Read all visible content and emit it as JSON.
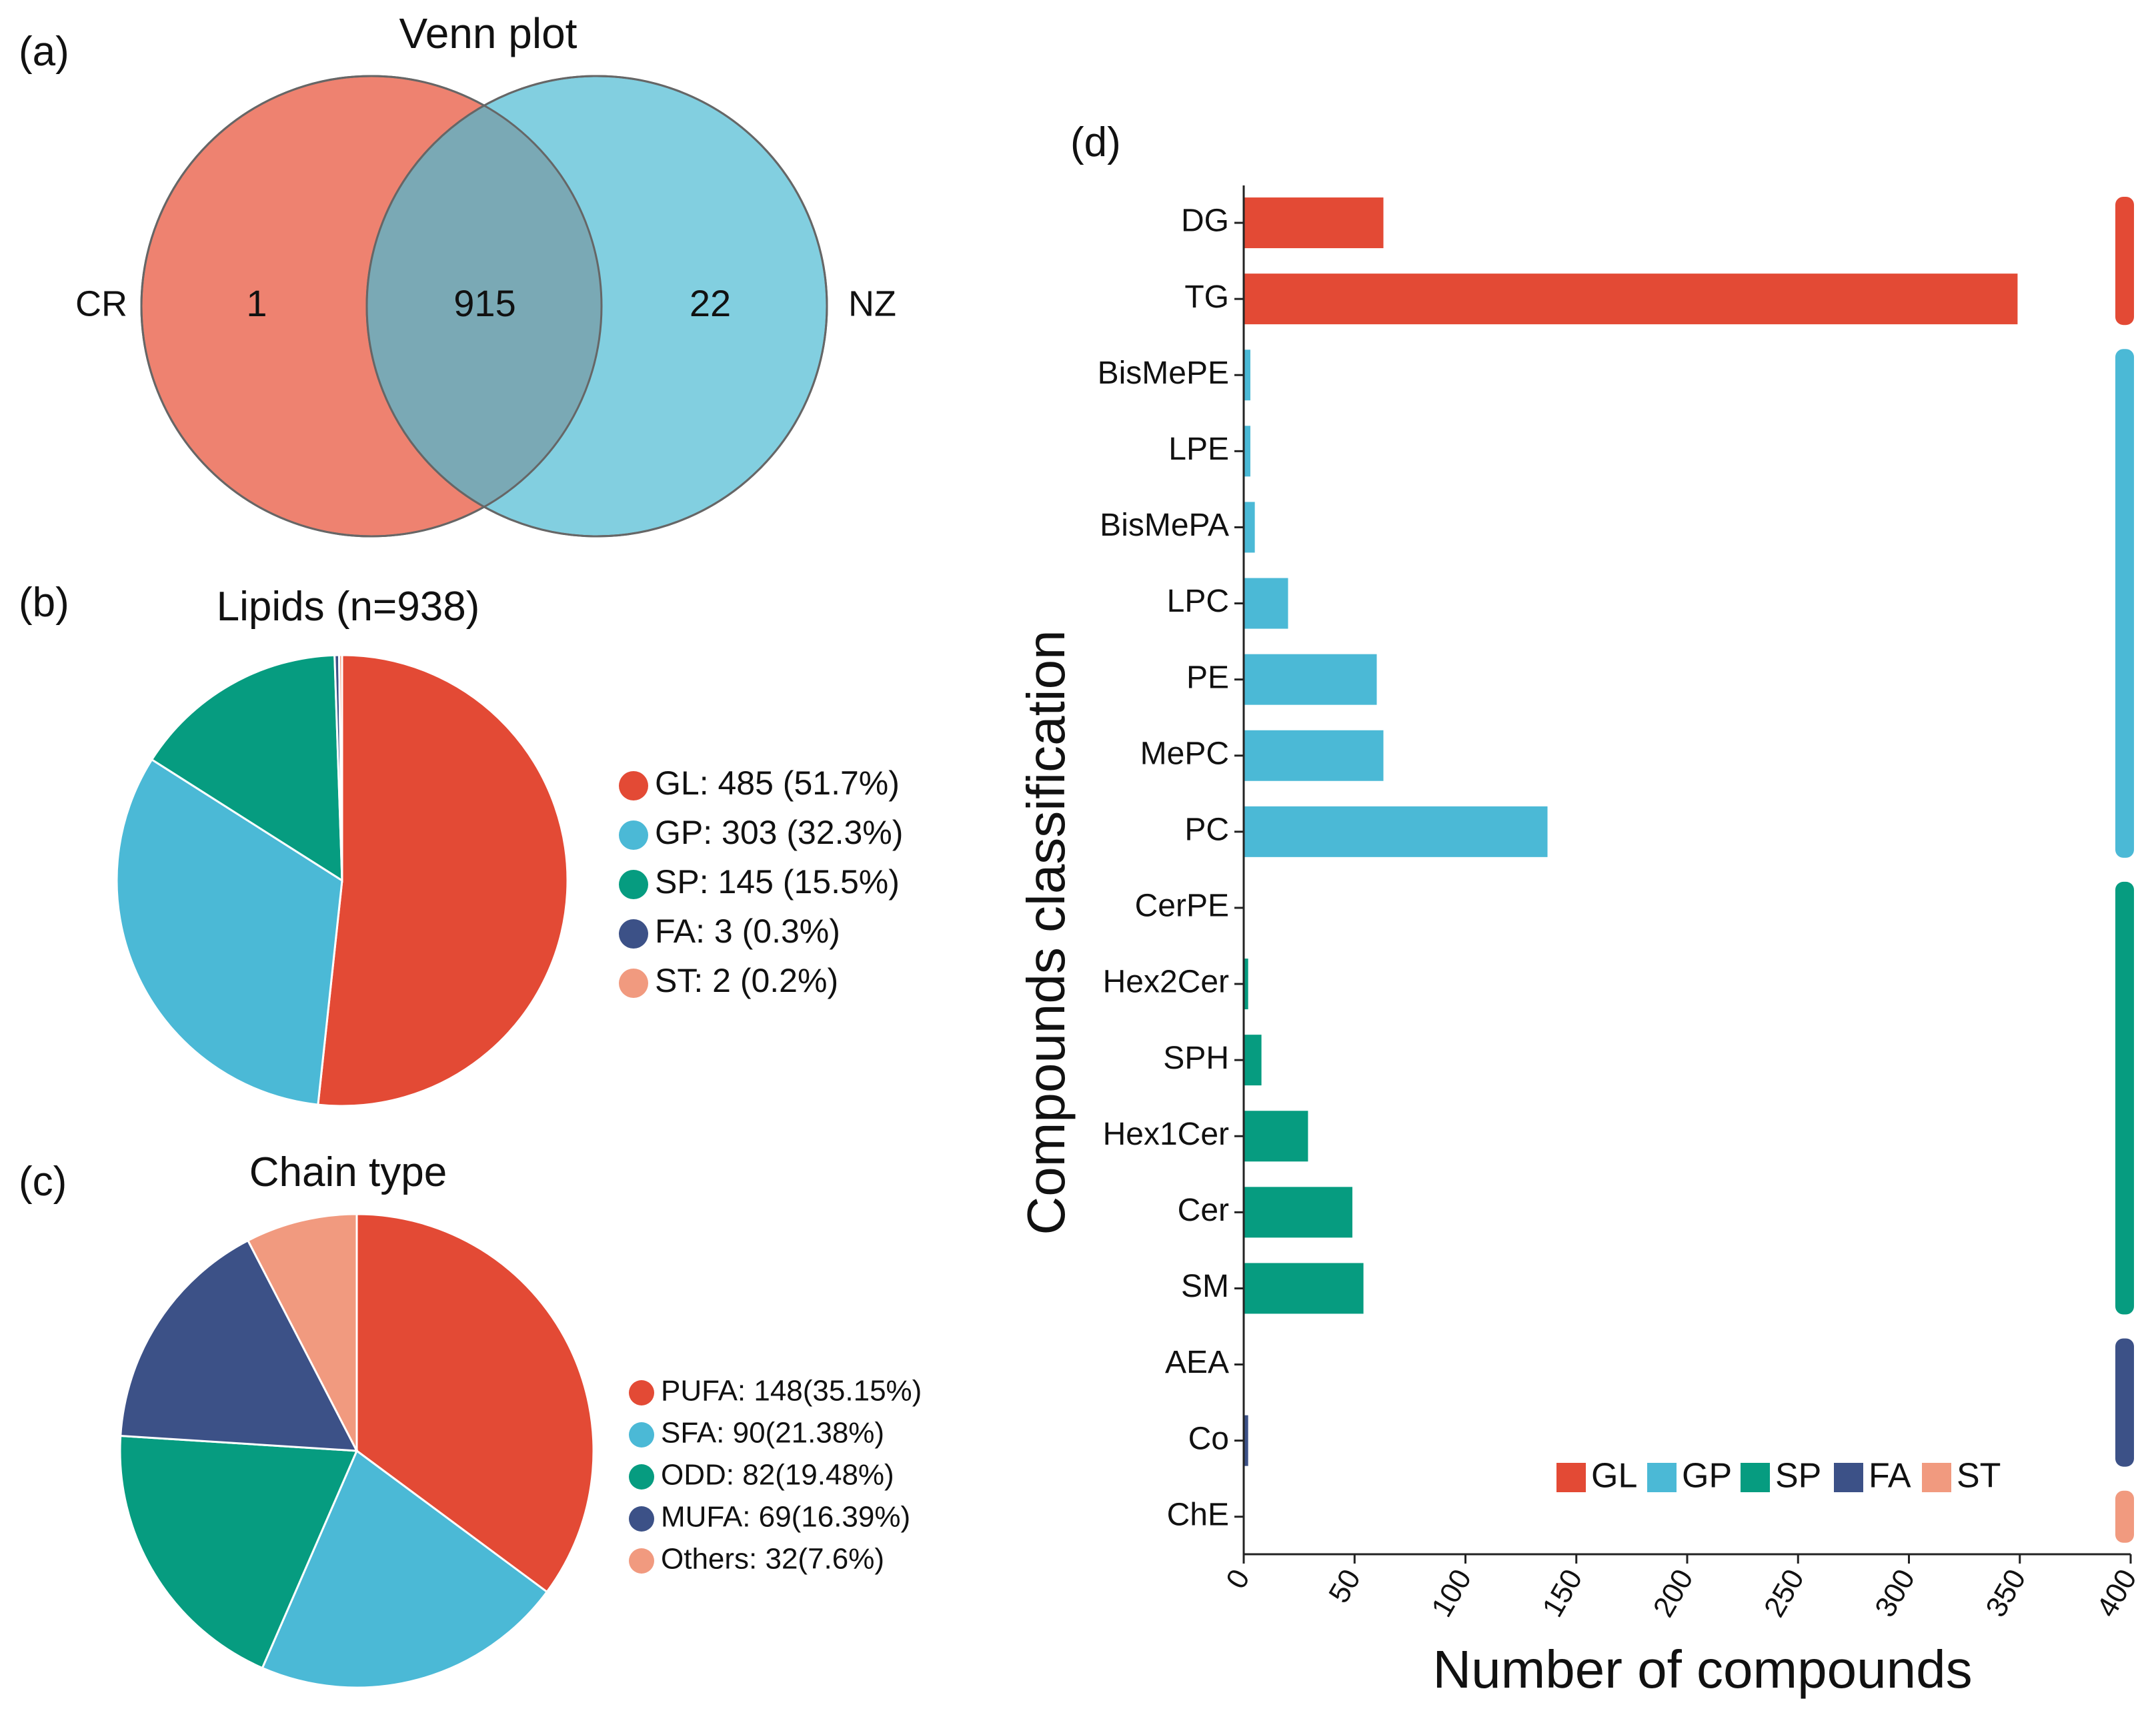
{
  "colors": {
    "GL": "#e34a35",
    "GP": "#4bb9d6",
    "SP": "#069c80",
    "FA": "#3c5187",
    "ST": "#f19a7f",
    "venn_left": "#ee8270",
    "venn_right": "#82cfe0",
    "venn_overlap": "#7aa9b5"
  },
  "panel_labels": {
    "a": "(a)",
    "b": "(b)",
    "c": "(c)",
    "d": "(d)"
  },
  "venn": {
    "title": "Venn plot",
    "left_label": "CR",
    "right_label": "NZ",
    "left_only": "1",
    "both": "915",
    "right_only": "22"
  },
  "pie_lipids": {
    "title": "Lipids (n=938)",
    "slices": [
      {
        "key": "GL",
        "value": 485,
        "legend": "GL: 485 (51.7%)"
      },
      {
        "key": "GP",
        "value": 303,
        "legend": "GP: 303 (32.3%)"
      },
      {
        "key": "SP",
        "value": 145,
        "legend": "SP: 145 (15.5%)"
      },
      {
        "key": "FA",
        "value": 3,
        "legend": "FA: 3 (0.3%)"
      },
      {
        "key": "ST",
        "value": 2,
        "legend": "ST: 2 (0.2%)"
      }
    ]
  },
  "pie_chain": {
    "title": "Chain type",
    "slices": [
      {
        "key": "GL",
        "value": 148,
        "legend": "PUFA: 148(35.15%)"
      },
      {
        "key": "GP",
        "value": 90,
        "legend": "SFA: 90(21.38%)"
      },
      {
        "key": "SP",
        "value": 82,
        "legend": "ODD: 82(19.48%)"
      },
      {
        "key": "FA",
        "value": 69,
        "legend": "MUFA: 69(16.39%)"
      },
      {
        "key": "ST",
        "value": 32,
        "legend": "Others: 32(7.6%)"
      }
    ]
  },
  "chart_data": {
    "type": "bar",
    "orientation": "horizontal",
    "xlabel": "Number of compounds",
    "ylabel": "Compounds classification",
    "xlim": [
      0,
      400
    ],
    "xticks": [
      "0",
      "50",
      "100",
      "150",
      "200",
      "250",
      "300",
      "350",
      "400"
    ],
    "categories": [
      "DG",
      "TG",
      "BisMePE",
      "LPE",
      "BisMePA",
      "LPC",
      "PE",
      "MePC",
      "PC",
      "CerPE",
      "Hex2Cer",
      "SPH",
      "Hex1Cer",
      "Cer",
      "SM",
      "AEA",
      "Co",
      "ChE"
    ],
    "values": [
      63,
      349,
      3,
      3,
      5,
      20,
      60,
      63,
      137,
      0,
      2,
      8,
      29,
      49,
      54,
      0,
      2,
      0
    ],
    "groups": [
      "GL",
      "GL",
      "GP",
      "GP",
      "GP",
      "GP",
      "GP",
      "GP",
      "GP",
      "SP",
      "SP",
      "SP",
      "SP",
      "SP",
      "SP",
      "FA",
      "FA",
      "ST"
    ],
    "legend": [
      "GL",
      "GP",
      "SP",
      "FA",
      "ST"
    ]
  }
}
